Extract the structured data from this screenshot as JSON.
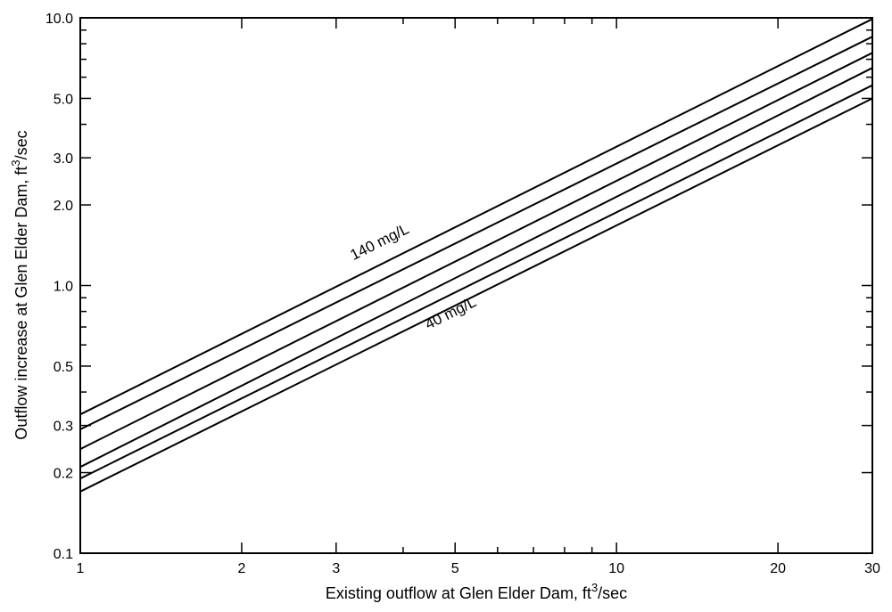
{
  "chart_data": {
    "type": "line",
    "title": "",
    "xscale": "log",
    "yscale": "log",
    "xlim": [
      1,
      30
    ],
    "ylim": [
      0.1,
      10
    ],
    "grid": false,
    "xticks": [
      {
        "value": 1,
        "label": "1"
      },
      {
        "value": 2,
        "label": "2"
      },
      {
        "value": 3,
        "label": "3"
      },
      {
        "value": 5,
        "label": "5"
      },
      {
        "value": 10,
        "label": "10"
      },
      {
        "value": 20,
        "label": "20"
      },
      {
        "value": 30,
        "label": "30"
      }
    ],
    "yticks": [
      {
        "value": 0.1,
        "label": "0.1"
      },
      {
        "value": 0.2,
        "label": "0.2"
      },
      {
        "value": 0.3,
        "label": "0.3"
      },
      {
        "value": 0.5,
        "label": "0.5"
      },
      {
        "value": 1,
        "label": "1.0"
      },
      {
        "value": 2,
        "label": "2.0"
      },
      {
        "value": 3,
        "label": "3.0"
      },
      {
        "value": 5,
        "label": "5.0"
      },
      {
        "value": 10,
        "label": "10.0"
      }
    ],
    "xlabel": {
      "prefix": "Existing outflow at Glen Elder Dam, ft",
      "sup": "3",
      "suffix": "/sec"
    },
    "ylabel": {
      "prefix": "Outflow increase at Glen Elder Dam, ft",
      "sup": "3",
      "suffix": "/sec"
    },
    "series": [
      {
        "x": [
          1,
          30
        ],
        "y": [
          0.33,
          9.9
        ]
      },
      {
        "x": [
          1,
          30
        ],
        "y": [
          0.29,
          8.5
        ]
      },
      {
        "x": [
          1,
          30
        ],
        "y": [
          0.245,
          7.4
        ]
      },
      {
        "x": [
          1,
          30
        ],
        "y": [
          0.21,
          6.5
        ]
      },
      {
        "x": [
          1,
          30
        ],
        "y": [
          0.19,
          5.6
        ]
      },
      {
        "x": [
          1,
          30
        ],
        "y": [
          0.17,
          5.0
        ]
      }
    ],
    "annotations": [
      {
        "text": "140 mg/L",
        "x": 3.65,
        "y": 1.4,
        "series_index": 0
      },
      {
        "text": "40 mg/L",
        "x": 4.95,
        "y": 0.76,
        "series_index": 5
      }
    ]
  }
}
